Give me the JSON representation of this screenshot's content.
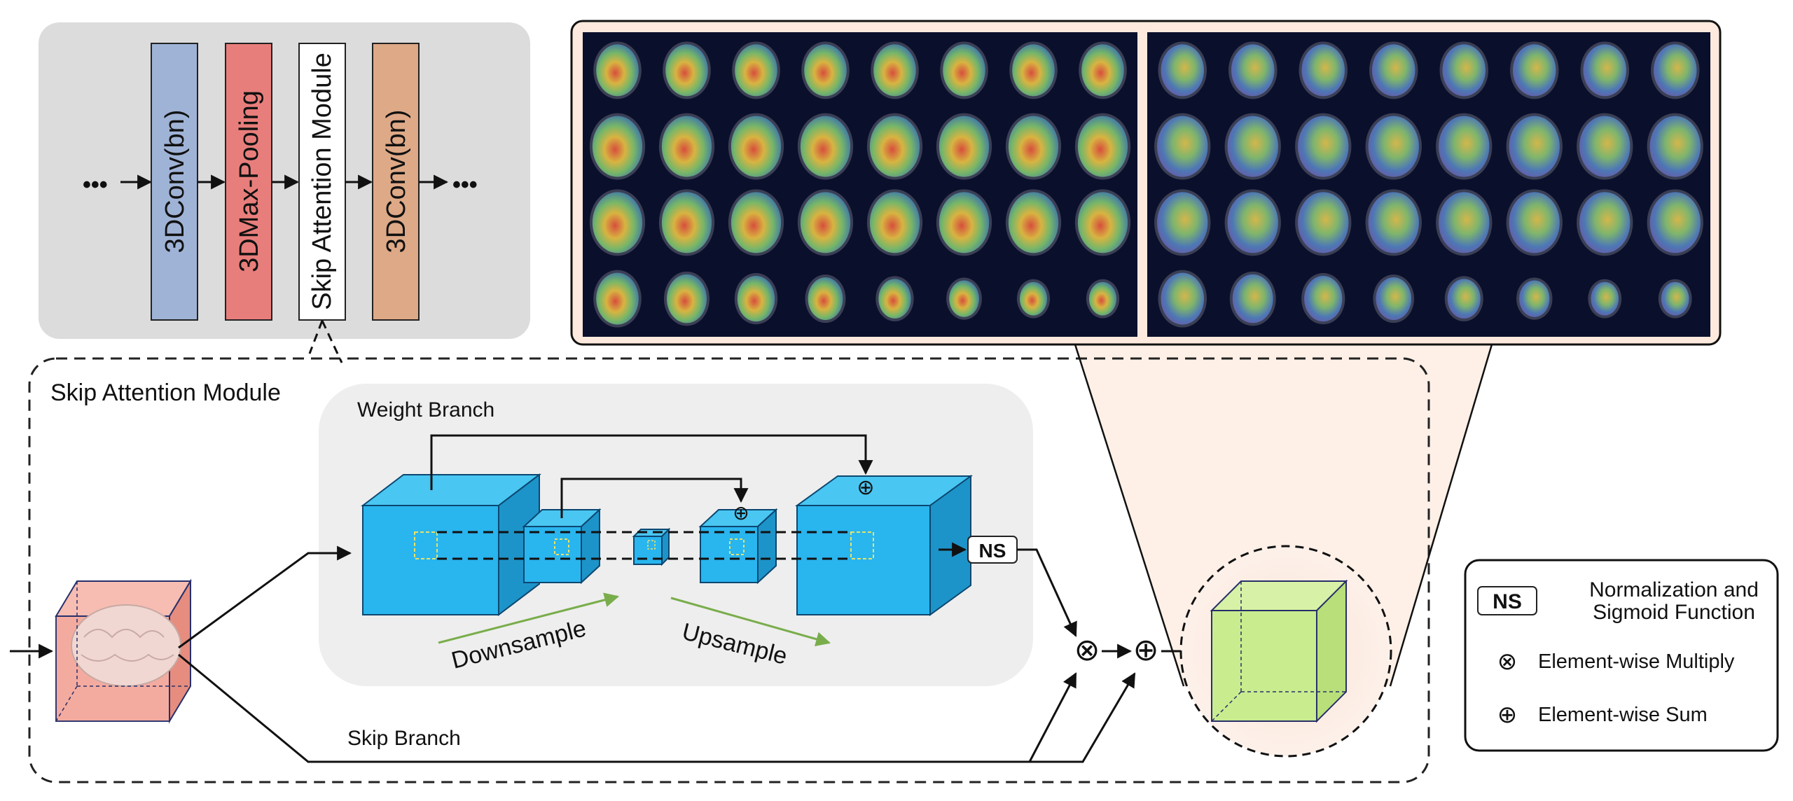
{
  "pipeline": {
    "ellipsis": "•••",
    "blocks": [
      {
        "label": "3DConv(bn)",
        "color": "#9fb3d6"
      },
      {
        "label": "3DMax-Pooling",
        "color": "#e87e7b"
      },
      {
        "label": "Skip Attention Module",
        "color": "#ffffff"
      },
      {
        "label": "3DConv(bn)",
        "color": "#dea987"
      }
    ]
  },
  "module": {
    "title": "Skip Attention Module",
    "weight_branch": "Weight Branch",
    "skip_branch": "Skip Branch",
    "downsample": "Downsample",
    "upsample": "Upsample",
    "ns_label": "NS",
    "multiply_symbol": "⊗",
    "sum_symbol": "⊕"
  },
  "legend": {
    "ns_label": "NS",
    "ns_desc_line1": "Normalization and",
    "ns_desc_line2": "Sigmoid Function",
    "multiply_symbol": "⊗",
    "multiply_desc": "Element-wise Multiply",
    "sum_symbol": "⊕",
    "sum_desc": "Element-wise Sum"
  },
  "colors": {
    "cube_blue": "#29b5ee",
    "input_cube": "#f4a79a",
    "output_cube": "#c9ec8e",
    "arrow_green": "#79ad4b",
    "panel_bg": "#dcdcdc",
    "brain_panel_bg": "#fde9dd",
    "scan_bg": "#0a0f2b"
  },
  "brain_maps": {
    "left_grid": {
      "rows": 4,
      "cols": 8
    },
    "right_grid": {
      "rows": 4,
      "cols": 8
    }
  }
}
